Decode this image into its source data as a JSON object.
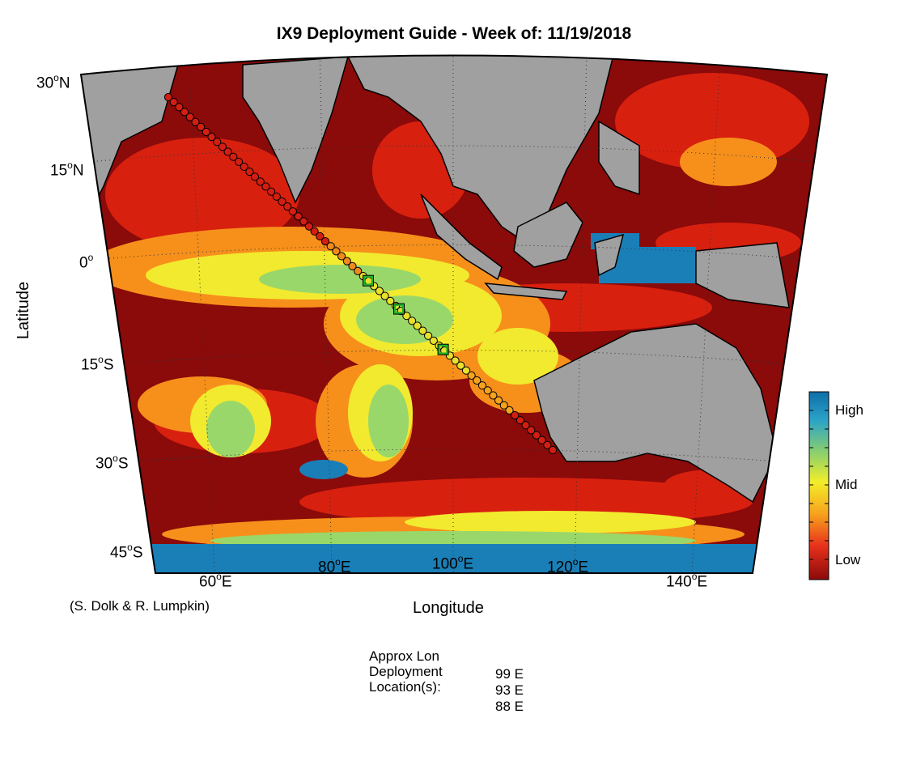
{
  "title": "IX9 Deployment Guide - Week of: 11/19/2018",
  "x_axis_title": "Longitude",
  "y_axis_title": "Latitude",
  "credit": "(S. Dolk & R. Lumpkin)",
  "latitude_ticks": [
    {
      "deg": "30",
      "hemi": "N"
    },
    {
      "deg": "15",
      "hemi": "N"
    },
    {
      "deg": "0",
      "hemi": ""
    },
    {
      "deg": "15",
      "hemi": "S"
    },
    {
      "deg": "30",
      "hemi": "S"
    },
    {
      "deg": "45",
      "hemi": "S"
    }
  ],
  "longitude_ticks": [
    {
      "deg": "60",
      "hemi": "E"
    },
    {
      "deg": "80",
      "hemi": "E"
    },
    {
      "deg": "100",
      "hemi": "E"
    },
    {
      "deg": "120",
      "hemi": "E"
    },
    {
      "deg": "140",
      "hemi": "E"
    }
  ],
  "colorbar": {
    "labels": [
      "High",
      "Mid",
      "Low"
    ],
    "colors": [
      "#0e6ea8",
      "#2aa3c8",
      "#8fd16a",
      "#f2ee2a",
      "#f7a21c",
      "#e8311c",
      "#8b0a0a"
    ]
  },
  "land_color": "#a0a0a0",
  "ocean_low_color": "#8b0a0a",
  "deployment": {
    "header_lines": [
      "Approx Lon",
      "Deployment",
      "Location(s):"
    ],
    "locations": [
      "99 E",
      "93 E",
      "88 E"
    ]
  }
}
